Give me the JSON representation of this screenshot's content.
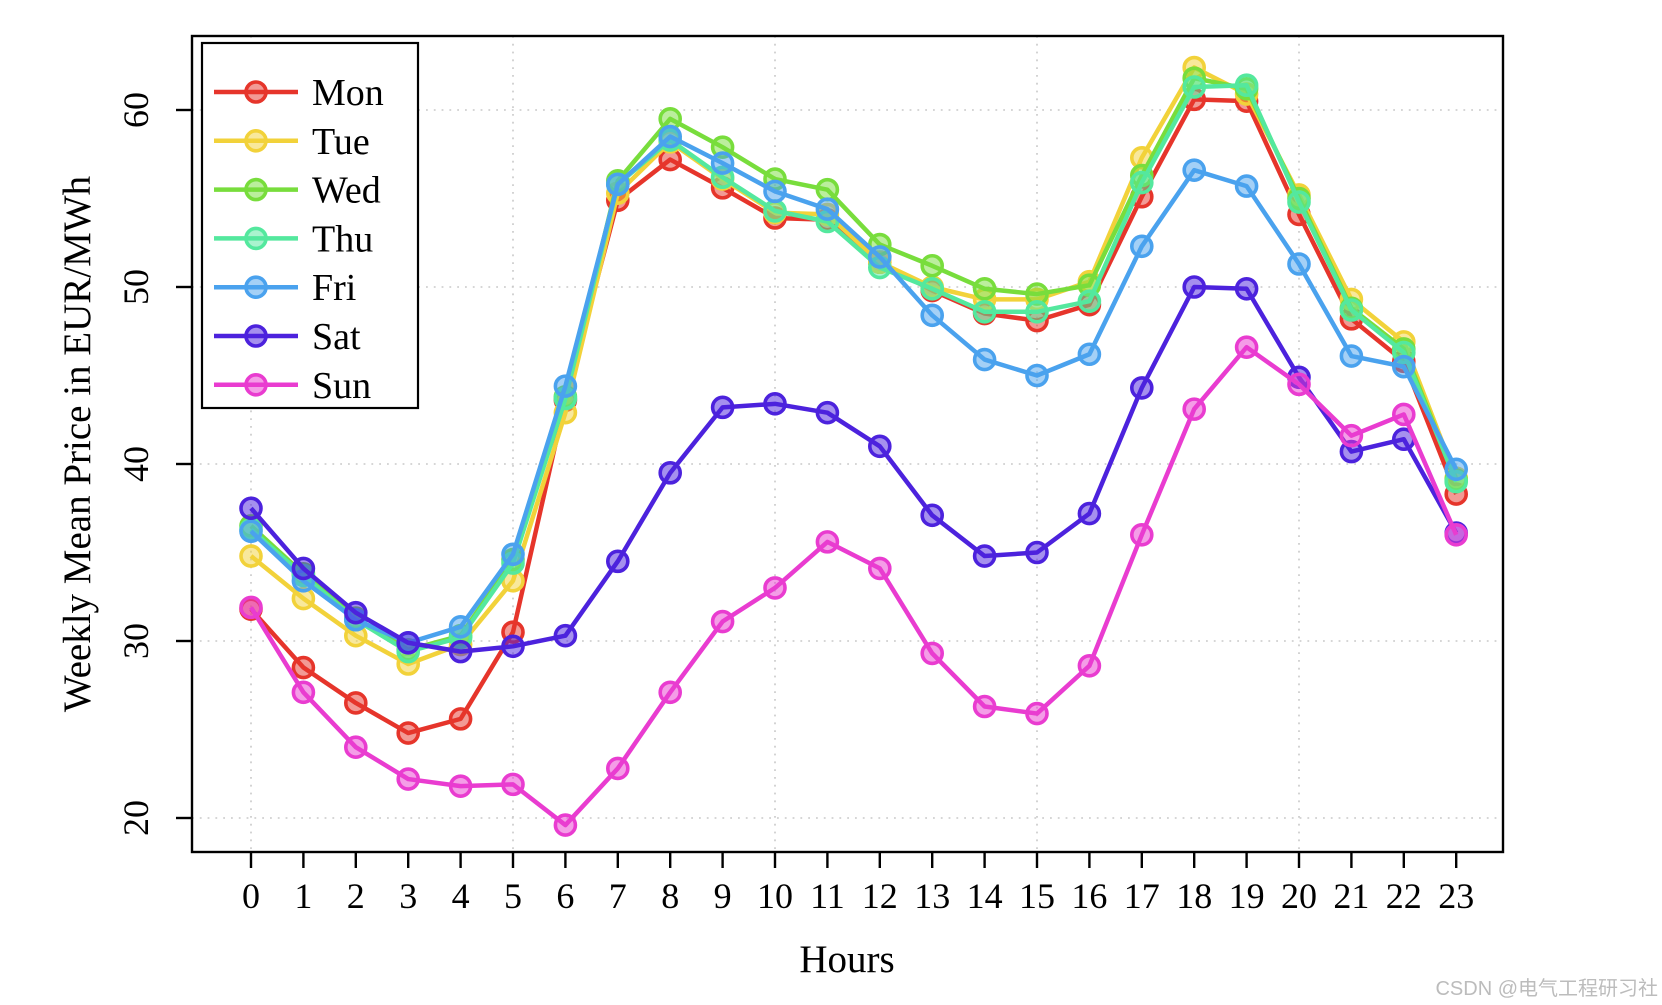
{
  "watermark": "CSDN @电气工程研习社",
  "chart_data": {
    "type": "line",
    "title": "",
    "xlabel": "Hours",
    "ylabel": "Weekly Mean Price in EUR/MWh",
    "x": [
      0,
      1,
      2,
      3,
      4,
      5,
      6,
      7,
      8,
      9,
      10,
      11,
      12,
      13,
      14,
      15,
      16,
      17,
      18,
      19,
      20,
      21,
      22,
      23
    ],
    "axes": {
      "x_ticks": [
        0,
        1,
        2,
        3,
        4,
        5,
        6,
        7,
        8,
        9,
        10,
        11,
        12,
        13,
        14,
        15,
        16,
        17,
        18,
        19,
        20,
        21,
        22,
        23
      ],
      "y_ticks": [
        20,
        30,
        40,
        50,
        60
      ],
      "x_gridlines": [
        0,
        5,
        10,
        15,
        20
      ],
      "xlim": [
        -1.1,
        24.9
      ],
      "ylim": [
        18.1,
        64.2
      ],
      "grid": "dotted"
    },
    "legend_position": "top-left",
    "series": [
      {
        "name": "Mon",
        "color": "#e6352b",
        "values": [
          31.8,
          28.5,
          26.5,
          24.8,
          25.6,
          30.5,
          43.6,
          54.9,
          57.2,
          55.6,
          53.9,
          53.8,
          51.4,
          49.8,
          48.5,
          48.1,
          49.0,
          55.1,
          60.6,
          60.5,
          54.1,
          48.2,
          45.8,
          38.3
        ]
      },
      {
        "name": "Tue",
        "color": "#f2d23a",
        "values": [
          34.8,
          32.4,
          30.3,
          28.7,
          29.8,
          33.4,
          42.9,
          55.3,
          58.2,
          56.1,
          54.2,
          54.1,
          51.4,
          50.0,
          49.3,
          49.3,
          50.3,
          57.3,
          62.4,
          60.9,
          55.2,
          49.3,
          46.9,
          39.2
        ]
      },
      {
        "name": "Wed",
        "color": "#78dd3c",
        "values": [
          36.5,
          33.8,
          31.3,
          29.5,
          30.3,
          34.6,
          43.8,
          56.0,
          59.5,
          57.9,
          56.1,
          55.5,
          52.4,
          51.2,
          49.9,
          49.6,
          50.1,
          56.3,
          61.8,
          61.2,
          55.0,
          48.8,
          46.5,
          39.1
        ]
      },
      {
        "name": "Thu",
        "color": "#54e89e",
        "values": [
          36.3,
          33.7,
          31.2,
          29.4,
          30.2,
          34.4,
          43.7,
          55.8,
          58.3,
          56.2,
          54.3,
          53.7,
          51.1,
          49.9,
          48.6,
          48.6,
          49.2,
          55.9,
          61.3,
          61.4,
          54.8,
          48.7,
          46.3,
          39.0
        ]
      },
      {
        "name": "Fri",
        "color": "#4aa2ee",
        "values": [
          36.2,
          33.4,
          31.2,
          29.9,
          30.8,
          34.9,
          44.4,
          55.8,
          58.5,
          57.0,
          55.4,
          54.4,
          51.7,
          48.4,
          45.9,
          45.0,
          46.2,
          52.3,
          56.6,
          55.7,
          51.3,
          46.1,
          45.5,
          39.7
        ]
      },
      {
        "name": "Sat",
        "color": "#4c22dd",
        "values": [
          37.5,
          34.1,
          31.6,
          29.9,
          29.4,
          29.7,
          30.3,
          34.5,
          39.5,
          43.2,
          43.4,
          42.9,
          41.0,
          37.1,
          34.8,
          35.0,
          37.2,
          44.3,
          50.0,
          49.9,
          44.9,
          40.7,
          41.4,
          36.1
        ]
      },
      {
        "name": "Sun",
        "color": "#e93cd0",
        "values": [
          31.9,
          27.1,
          24.0,
          22.2,
          21.8,
          21.9,
          19.6,
          22.8,
          27.1,
          31.1,
          33.0,
          35.6,
          34.1,
          29.3,
          26.3,
          25.9,
          28.6,
          36.0,
          43.1,
          46.6,
          44.5,
          41.6,
          42.8,
          36.0
        ]
      }
    ],
    "style": {
      "grid_color": "#c8c8c8",
      "frame_color": "#000000",
      "marker": "circle-translucent",
      "line_width": 4.5,
      "marker_radius": 10
    }
  }
}
